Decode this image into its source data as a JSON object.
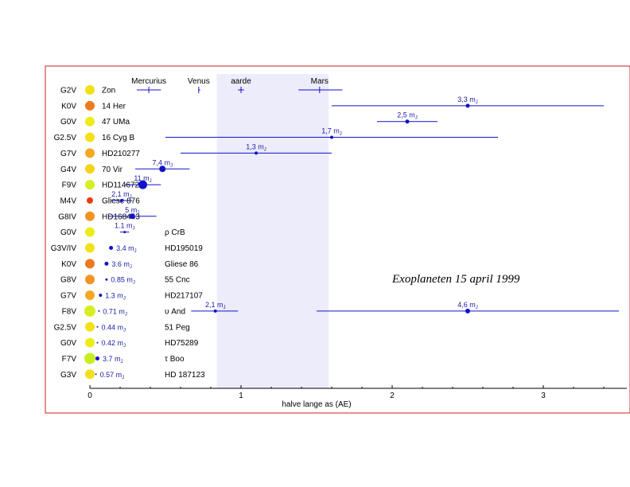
{
  "chart_data": {
    "type": "scatter",
    "title": "Exoplaneten 15 april 1999",
    "xlabel": "halve lange as (AE)",
    "ylabel": "",
    "xlim": [
      0,
      3.5
    ],
    "x_ticks": [
      0,
      1,
      2,
      3
    ],
    "x_tick_labels": [
      "0",
      "1",
      "2",
      "3"
    ],
    "habitable_zone": [
      0.84,
      1.58
    ],
    "colors": {
      "frame": "#cc2222",
      "planet": "#1111cc",
      "zone": "#ececfb"
    },
    "solar_system": [
      {
        "name": "Mercurius",
        "a": 0.39,
        "low": 0.31,
        "high": 0.47
      },
      {
        "name": "Venus",
        "a": 0.72,
        "low": 0.72,
        "high": 0.73
      },
      {
        "name": "aarde",
        "a": 1.0,
        "low": 0.98,
        "high": 1.02
      },
      {
        "name": "Mars",
        "a": 1.52,
        "low": 1.38,
        "high": 1.67
      }
    ],
    "stars": [
      {
        "spectral": "G2V",
        "name": "Zon",
        "color": "#f4e01a",
        "size": 6
      },
      {
        "spectral": "K0V",
        "name": "14 Her",
        "color": "#ee7a20",
        "size": 6
      },
      {
        "spectral": "G0V",
        "name": "47 UMa",
        "color": "#ecec1a",
        "size": 6
      },
      {
        "spectral": "G2.5V",
        "name": "16 Cyg B",
        "color": "#f4e01a",
        "size": 6
      },
      {
        "spectral": "G7V",
        "name": "HD210277",
        "color": "#f4a820",
        "size": 6
      },
      {
        "spectral": "G4V",
        "name": "70 Vir",
        "color": "#f4d41a",
        "size": 6
      },
      {
        "spectral": "F9V",
        "name": "HD114672",
        "color": "#d6ee22",
        "size": 6
      },
      {
        "spectral": "M4V",
        "name": "Gliese 876",
        "color": "#ee3a10",
        "size": 4
      },
      {
        "spectral": "G8IV",
        "name": "HD168443",
        "color": "#f49420",
        "size": 6
      },
      {
        "spectral": "G0V",
        "name": "ρ CrB",
        "color": "#ecec1a",
        "size": 6
      },
      {
        "spectral": "G3V/IV",
        "name": "HD195019",
        "color": "#f4e01a",
        "size": 6
      },
      {
        "spectral": "K0V",
        "name": "Gliese 86",
        "color": "#ee7a20",
        "size": 6
      },
      {
        "spectral": "G8V",
        "name": "55 Cnc",
        "color": "#f49420",
        "size": 6
      },
      {
        "spectral": "G7V",
        "name": "HD217107",
        "color": "#f4a820",
        "size": 6
      },
      {
        "spectral": "F8V",
        "name": "υ And",
        "color": "#d6ee22",
        "size": 7
      },
      {
        "spectral": "G2.5V",
        "name": "51 Peg",
        "color": "#f4e01a",
        "size": 6
      },
      {
        "spectral": "G0V",
        "name": "HD75289",
        "color": "#ecec1a",
        "size": 6
      },
      {
        "spectral": "F7V",
        "name": "τ Boo",
        "color": "#c8ee22",
        "size": 7
      },
      {
        "spectral": "G3V",
        "name": "HD 187123",
        "color": "#f4e01a",
        "size": 6
      }
    ],
    "planets": [
      {
        "row": 1,
        "a": 2.5,
        "low": 1.6,
        "high": 3.4,
        "mass": "3,3",
        "size": 2.5
      },
      {
        "row": 2,
        "a": 2.1,
        "low": 1.9,
        "high": 2.3,
        "mass": "2,5",
        "size": 2.5
      },
      {
        "row": 3,
        "a": 1.6,
        "low": 0.5,
        "high": 2.7,
        "mass": "1,7",
        "size": 2
      },
      {
        "row": 4,
        "a": 1.1,
        "low": 0.6,
        "high": 1.6,
        "mass": "1,3",
        "size": 2
      },
      {
        "row": 5,
        "a": 0.48,
        "low": 0.3,
        "high": 0.66,
        "mass": "7,4",
        "size": 4
      },
      {
        "row": 6,
        "a": 0.35,
        "low": 0.23,
        "high": 0.47,
        "mass": "11",
        "size": 5.5
      },
      {
        "row": 7,
        "a": 0.21,
        "low": 0.14,
        "high": 0.28,
        "mass": "2,1",
        "size": 2
      },
      {
        "row": 8,
        "a": 0.28,
        "low": 0.12,
        "high": 0.44,
        "mass": "5",
        "size": 3.5
      },
      {
        "row": 9,
        "a": 0.23,
        "low": 0.2,
        "high": 0.26,
        "mass": "1.1",
        "size": 1.5
      },
      {
        "row": 10,
        "a": 0.14,
        "mass": "3.4",
        "size": 2.5
      },
      {
        "row": 11,
        "a": 0.11,
        "mass": "3.6",
        "size": 2.5
      },
      {
        "row": 12,
        "a": 0.11,
        "mass": "0.85",
        "size": 1.5
      },
      {
        "row": 13,
        "a": 0.07,
        "mass": "1.3",
        "size": 2
      },
      {
        "row": 14,
        "a": 0.06,
        "mass": "0.71",
        "size": 1
      },
      {
        "row": 14,
        "a": 0.83,
        "low": 0.67,
        "high": 0.98,
        "mass": "2,1",
        "size": 2
      },
      {
        "row": 14,
        "a": 2.5,
        "low": 1.5,
        "high": 3.5,
        "mass": "4,6",
        "size": 3
      },
      {
        "row": 15,
        "a": 0.05,
        "mass": "0.44",
        "size": 1
      },
      {
        "row": 16,
        "a": 0.05,
        "mass": "0.42",
        "size": 1
      },
      {
        "row": 17,
        "a": 0.05,
        "mass": "3.7",
        "size": 2.5
      },
      {
        "row": 18,
        "a": 0.04,
        "mass": "0.57",
        "size": 1
      }
    ],
    "mass_unit": "m",
    "mass_unit_sub": "J",
    "grid": false,
    "legend": "none"
  }
}
